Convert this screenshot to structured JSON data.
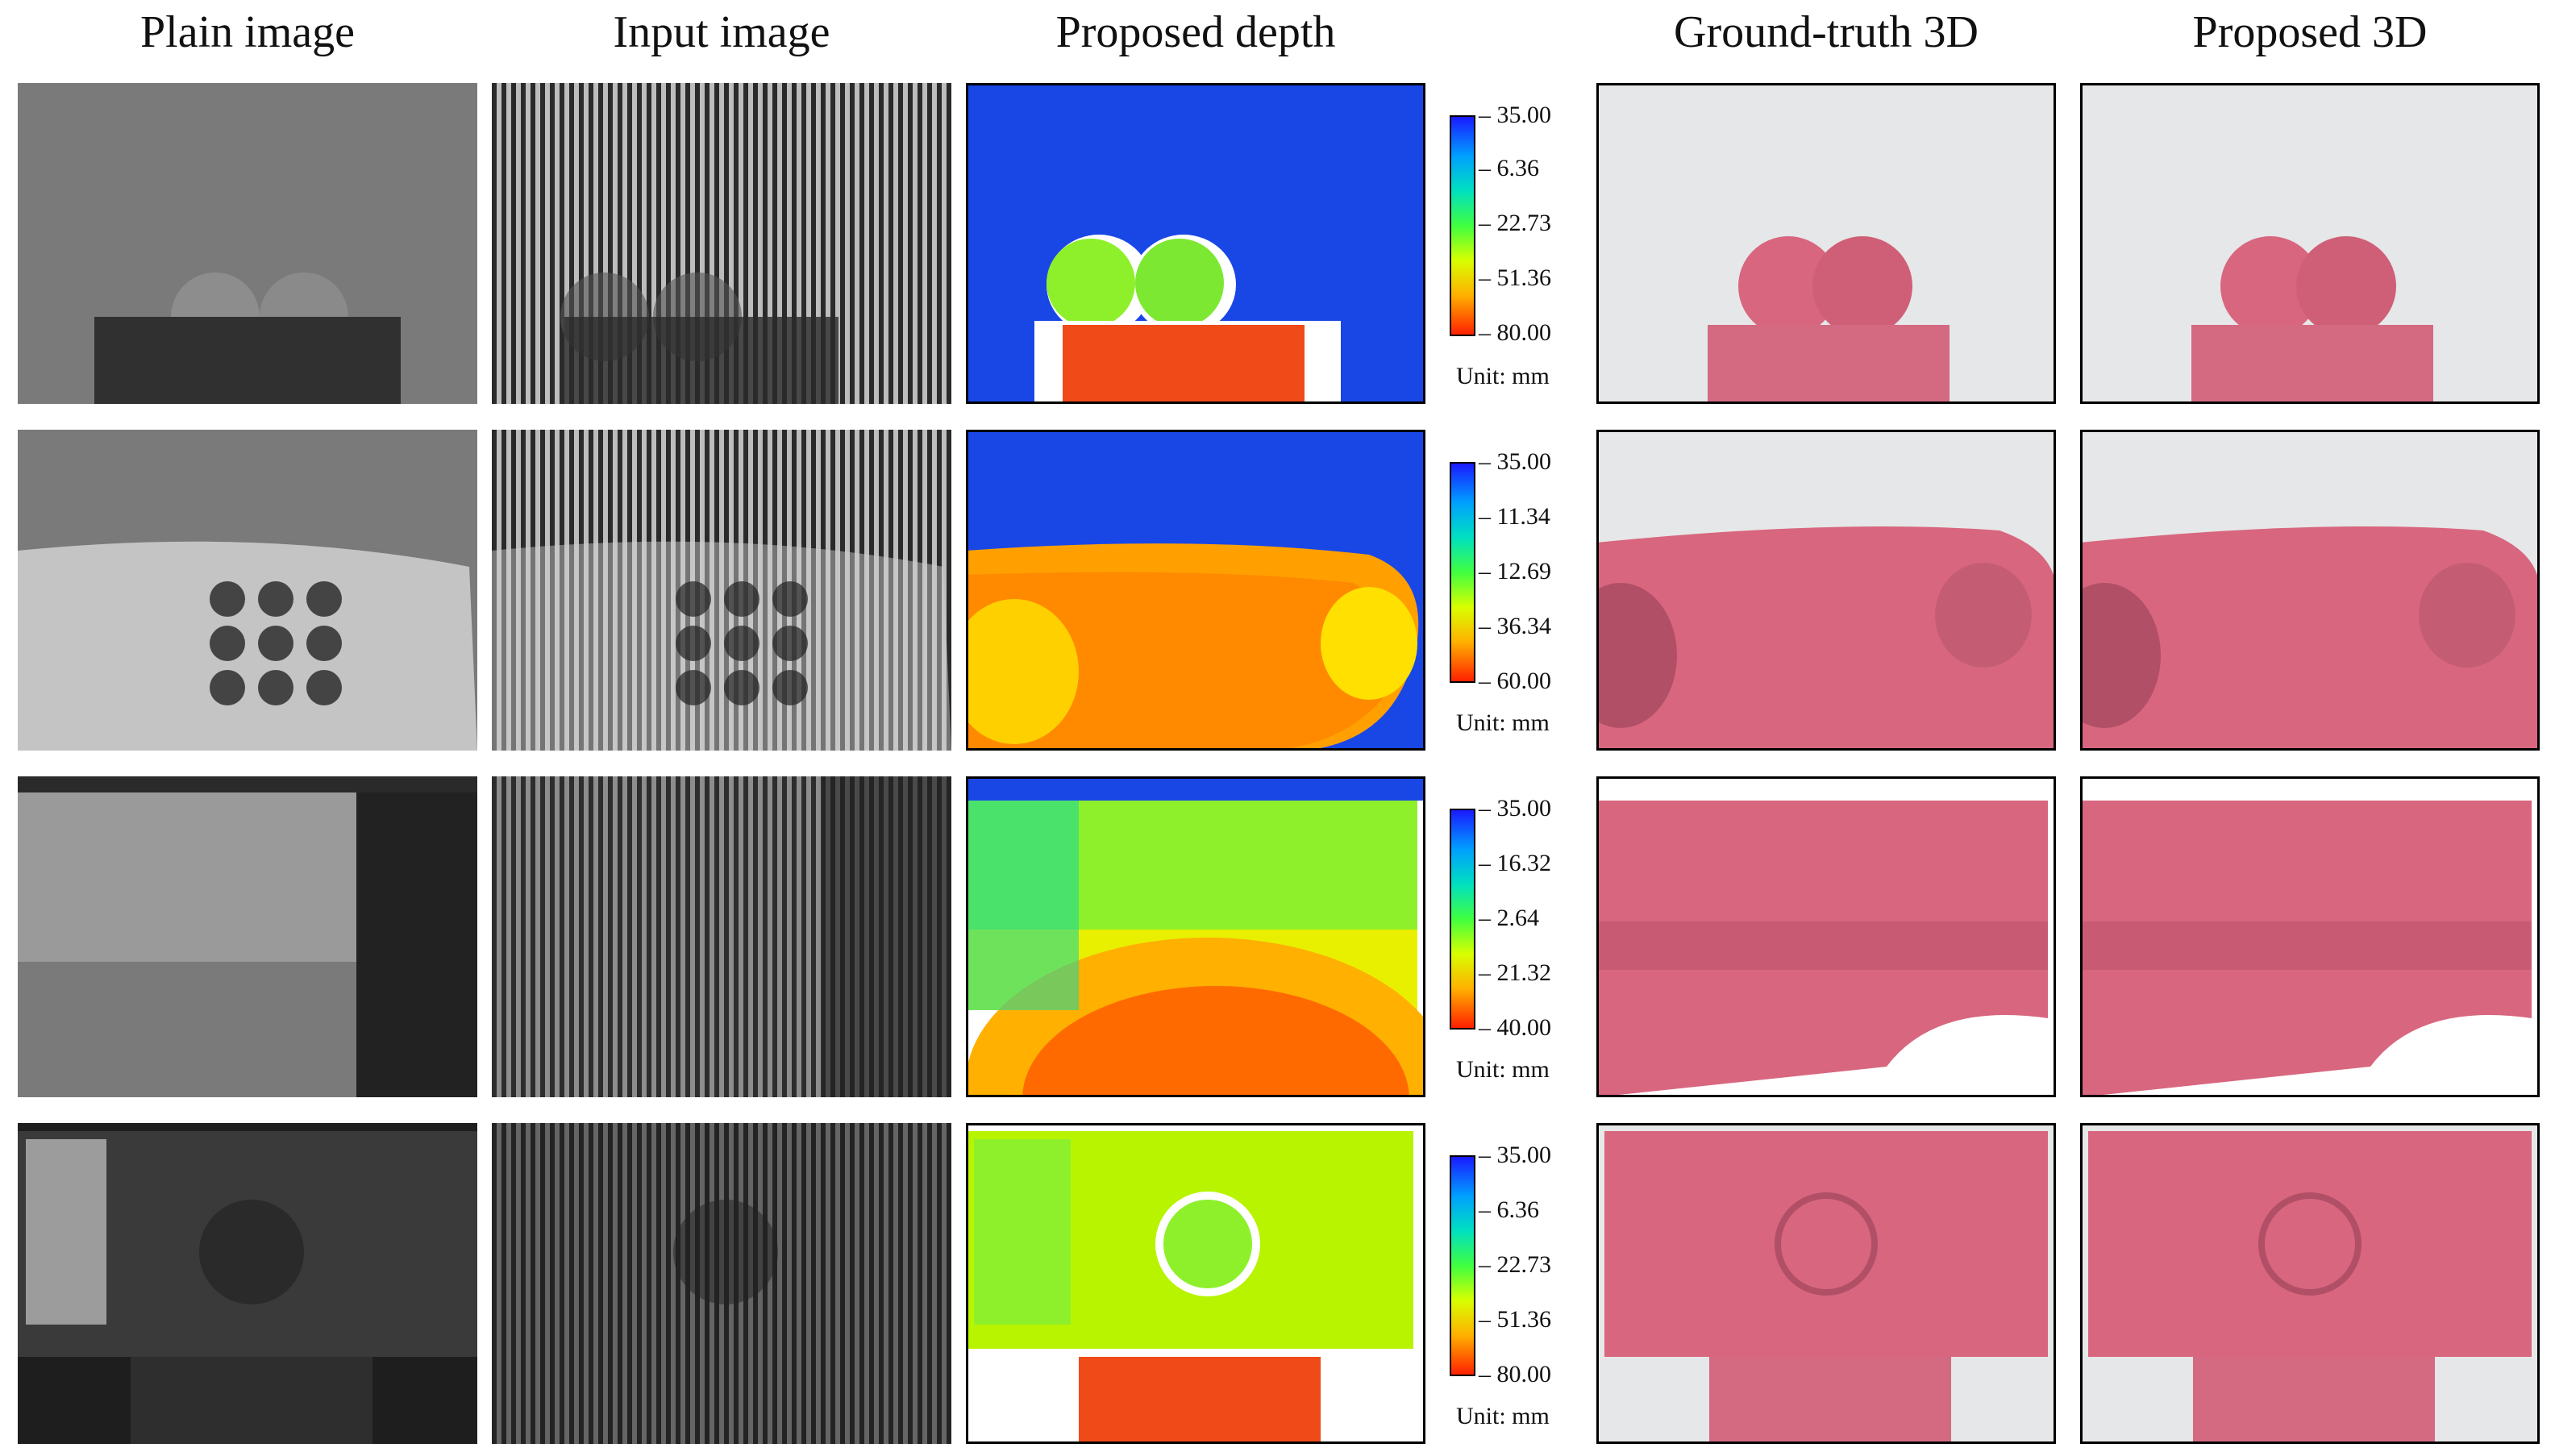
{
  "headers": [
    "Plain image",
    "Input image",
    "Proposed depth",
    "Ground-truth 3D",
    "Proposed 3D"
  ],
  "rows": [
    {
      "ticks": [
        "35.00",
        "6.36",
        "22.73",
        "51.36",
        "80.00"
      ],
      "unit": "Unit: mm"
    },
    {
      "ticks": [
        "35.00",
        "11.34",
        "12.69",
        "36.34",
        "60.00"
      ],
      "unit": "Unit: mm"
    },
    {
      "ticks": [
        "35.00",
        "16.32",
        "2.64",
        "21.32",
        "40.00"
      ],
      "unit": "Unit: mm"
    },
    {
      "ticks": [
        "35.00",
        "6.36",
        "22.73",
        "51.36",
        "80.00"
      ],
      "unit": "Unit: mm"
    }
  ],
  "colors": {
    "depth_background": "#1947e6",
    "render_background": "#e6e7e8",
    "render_surface": "#d8667f"
  }
}
